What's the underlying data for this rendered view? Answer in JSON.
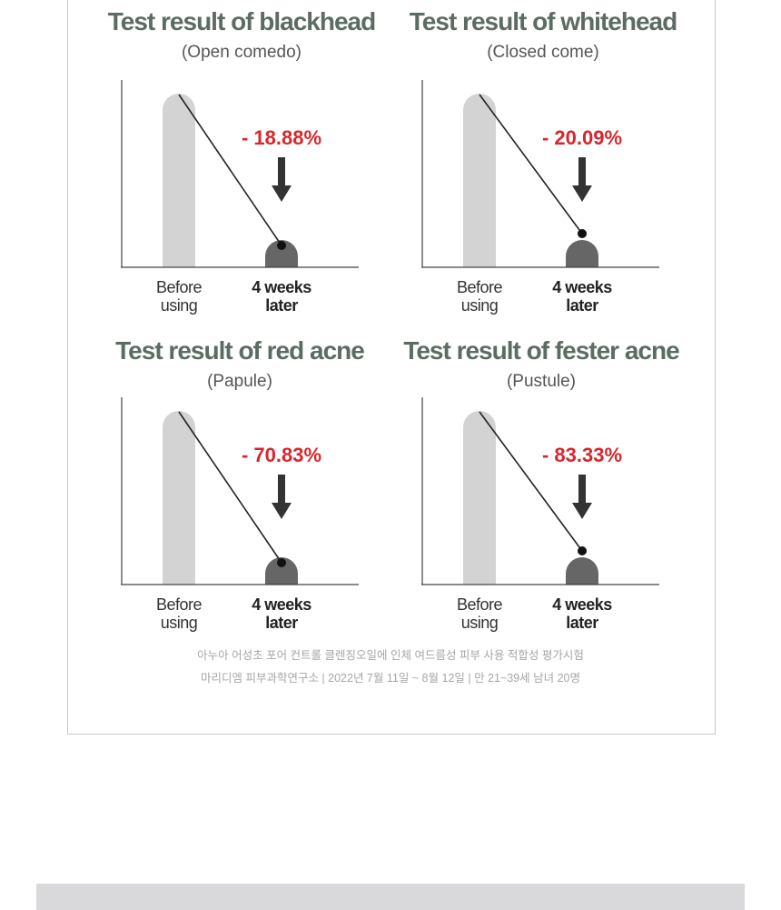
{
  "chart_data": [
    {
      "type": "bar",
      "title": "Test result of blackhead",
      "subtitle": "(Open comedo)",
      "categories": [
        "Before using",
        "4 weeks later"
      ],
      "annotation": "- 18.88%",
      "change_percent": -18.88
    },
    {
      "type": "bar",
      "title": "Test result of whitehead",
      "subtitle": "(Closed come)",
      "categories": [
        "Before using",
        "4 weeks later"
      ],
      "annotation": "- 20.09%",
      "change_percent": -20.09
    },
    {
      "type": "bar",
      "title": "Test result of red acne",
      "subtitle": "(Papule)",
      "categories": [
        "Before using",
        "4 weeks later"
      ],
      "annotation": "- 70.83%",
      "change_percent": -70.83
    },
    {
      "type": "bar",
      "title": "Test result of fester acne",
      "subtitle": "(Pustule)",
      "categories": [
        "Before using",
        "4 weeks later"
      ],
      "annotation": "- 83.33%",
      "change_percent": -83.33
    }
  ],
  "labels": {
    "before_1": "Before",
    "before_2": "using",
    "after_1": "4 weeks",
    "after_2": "later"
  },
  "footnote": {
    "line1": "아누아 어성초 포어 컨트롤 클렌징오일에 인체 여드름성 피부 사용 적합성 평가시험",
    "line2": "마리디엠 피부과학연구소 | 2022년 7월 11일 ~ 8월 12일 | 만 21~39세 남녀 20명"
  },
  "colors": {
    "title": "#5c6c62",
    "annotation": "#d8262c",
    "before_bar": "#d3d3d3",
    "after_bar": "#666666",
    "arrow": "#333333"
  }
}
